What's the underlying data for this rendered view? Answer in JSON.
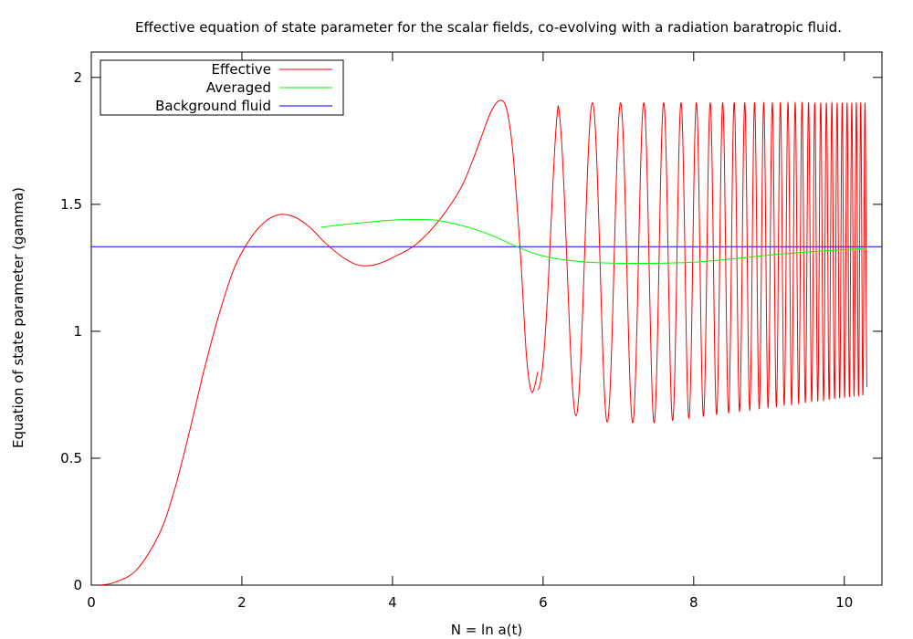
{
  "chart_data": {
    "type": "line",
    "title": "Effective equation of state parameter for the scalar fields, co-evolving with a radiation baratropic fluid.",
    "xlabel": "N = ln a(t)",
    "ylabel": "Equation of state parameter (gamma)",
    "xlim": [
      0,
      10.5
    ],
    "ylim": [
      0,
      2.1
    ],
    "x_ticks": [
      "0",
      "2",
      "4",
      "6",
      "8",
      "10"
    ],
    "y_ticks": [
      "0",
      "0.5",
      "1",
      "1.5",
      "2"
    ],
    "grid": false,
    "legend_position": "top-left",
    "series": [
      {
        "name": "Effective",
        "color": "#ff0000",
        "style": "oscillating",
        "smooth_points": [
          [
            0.1,
            0.0
          ],
          [
            0.3,
            0.01
          ],
          [
            0.6,
            0.06
          ],
          [
            0.9,
            0.2
          ],
          [
            1.1,
            0.37
          ],
          [
            1.3,
            0.6
          ],
          [
            1.5,
            0.85
          ],
          [
            1.7,
            1.07
          ],
          [
            1.9,
            1.25
          ],
          [
            2.1,
            1.36
          ],
          [
            2.3,
            1.43
          ],
          [
            2.5,
            1.46
          ],
          [
            2.7,
            1.45
          ],
          [
            2.9,
            1.41
          ],
          [
            3.1,
            1.35
          ],
          [
            3.3,
            1.3
          ],
          [
            3.5,
            1.265
          ],
          [
            3.65,
            1.258
          ],
          [
            3.8,
            1.265
          ],
          [
            4.0,
            1.29
          ],
          [
            4.3,
            1.34
          ],
          [
            4.6,
            1.43
          ],
          [
            4.9,
            1.56
          ],
          [
            5.1,
            1.7
          ],
          [
            5.3,
            1.86
          ],
          [
            5.43,
            1.91
          ],
          [
            5.52,
            1.87
          ],
          [
            5.6,
            1.7
          ],
          [
            5.7,
            1.3
          ],
          [
            5.78,
            0.9
          ],
          [
            5.85,
            0.76
          ],
          [
            5.93,
            0.84
          ]
        ],
        "osc_start": 5.93,
        "osc_end": 10.3,
        "osc_start_period": 0.62,
        "osc_end_period": 0.055,
        "max_values": [
          [
            5.93,
            1.0
          ],
          [
            6.2,
            1.9
          ],
          [
            10.3,
            1.9
          ]
        ],
        "min_values": [
          [
            5.93,
            0.76
          ],
          [
            6.45,
            0.665
          ],
          [
            6.75,
            0.645
          ],
          [
            7.0,
            0.64
          ],
          [
            7.5,
            0.64
          ],
          [
            8.0,
            0.66
          ],
          [
            9.0,
            0.7
          ],
          [
            10.3,
            0.75
          ]
        ]
      },
      {
        "name": "Averaged",
        "color": "#00ff00",
        "points": [
          [
            3.05,
            1.41
          ],
          [
            3.5,
            1.425
          ],
          [
            4.0,
            1.438
          ],
          [
            4.3,
            1.44
          ],
          [
            4.6,
            1.437
          ],
          [
            5.0,
            1.41
          ],
          [
            5.3,
            1.38
          ],
          [
            5.6,
            1.34
          ],
          [
            5.9,
            1.305
          ],
          [
            6.2,
            1.285
          ],
          [
            6.6,
            1.272
          ],
          [
            7.0,
            1.268
          ],
          [
            7.5,
            1.268
          ],
          [
            8.0,
            1.272
          ],
          [
            8.5,
            1.285
          ],
          [
            9.0,
            1.3
          ],
          [
            9.5,
            1.312
          ],
          [
            10.0,
            1.322
          ],
          [
            10.3,
            1.327
          ]
        ]
      },
      {
        "name": "Background fluid",
        "color": "#0000ff",
        "points": [
          [
            0,
            1.3333
          ],
          [
            10.5,
            1.3333
          ]
        ]
      }
    ]
  }
}
